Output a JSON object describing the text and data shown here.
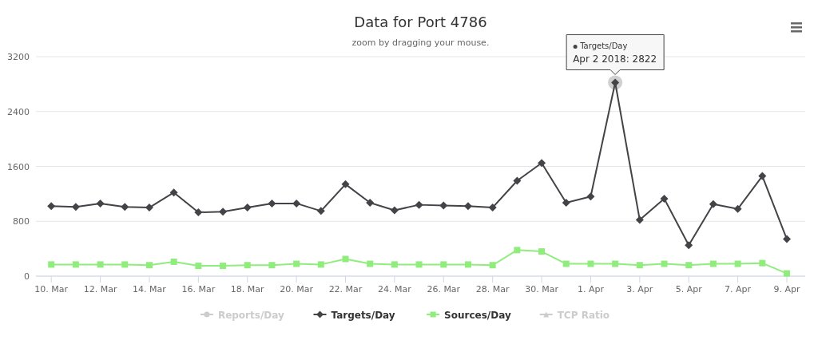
{
  "chart_data": {
    "type": "line",
    "title": "Data for Port 4786",
    "subtitle": "zoom by dragging your mouse.",
    "x": [
      "2018-03-10",
      "2018-03-11",
      "2018-03-12",
      "2018-03-13",
      "2018-03-14",
      "2018-03-15",
      "2018-03-16",
      "2018-03-17",
      "2018-03-18",
      "2018-03-19",
      "2018-03-20",
      "2018-03-21",
      "2018-03-22",
      "2018-03-23",
      "2018-03-24",
      "2018-03-25",
      "2018-03-26",
      "2018-03-27",
      "2018-03-28",
      "2018-03-29",
      "2018-03-30",
      "2018-03-31",
      "2018-04-01",
      "2018-04-02",
      "2018-04-03",
      "2018-04-04",
      "2018-04-05",
      "2018-04-06",
      "2018-04-07",
      "2018-04-08",
      "2018-04-09"
    ],
    "series": [
      {
        "name": "Reports/Day",
        "color": "#cccccc",
        "marker": "circle",
        "values": [
          null,
          null,
          null,
          null,
          null,
          null,
          null,
          null,
          null,
          null,
          null,
          null,
          null,
          null,
          null,
          null,
          null,
          null,
          null,
          null,
          null,
          null,
          null,
          null,
          null,
          null,
          null,
          null,
          null,
          null,
          null
        ]
      },
      {
        "name": "Targets/Day",
        "color": "#434348",
        "marker": "diamond",
        "values": [
          1020,
          1010,
          1060,
          1010,
          1000,
          1220,
          930,
          940,
          1000,
          1060,
          1060,
          950,
          1340,
          1070,
          960,
          1040,
          1030,
          1020,
          1000,
          1390,
          1650,
          1070,
          1160,
          2822,
          820,
          1130,
          450,
          1050,
          980,
          1460,
          540
        ]
      },
      {
        "name": "Sources/Day",
        "color": "#90ed7d",
        "marker": "square",
        "values": [
          170,
          170,
          170,
          170,
          160,
          210,
          150,
          150,
          160,
          160,
          180,
          170,
          250,
          180,
          170,
          170,
          170,
          170,
          160,
          380,
          360,
          180,
          180,
          180,
          160,
          180,
          160,
          180,
          180,
          190,
          40
        ]
      },
      {
        "name": "TCP Ratio",
        "color": "#cccccc",
        "marker": "triangle",
        "values": [
          null,
          null,
          null,
          null,
          null,
          null,
          null,
          null,
          null,
          null,
          null,
          null,
          null,
          null,
          null,
          null,
          null,
          null,
          null,
          null,
          null,
          null,
          null,
          null,
          null,
          null,
          null,
          null,
          null,
          null,
          null
        ]
      }
    ],
    "xlim": [
      "2018-03-09T09:00",
      "2018-04-09T18:00"
    ],
    "xticks": [
      {
        "value": "2018-03-10",
        "label": "10. Mar"
      },
      {
        "value": "2018-03-12",
        "label": "12. Mar"
      },
      {
        "value": "2018-03-14",
        "label": "14. Mar"
      },
      {
        "value": "2018-03-16",
        "label": "16. Mar"
      },
      {
        "value": "2018-03-18",
        "label": "18. Mar"
      },
      {
        "value": "2018-03-20",
        "label": "20. Mar"
      },
      {
        "value": "2018-03-22",
        "label": "22. Mar"
      },
      {
        "value": "2018-03-24",
        "label": "24. Mar"
      },
      {
        "value": "2018-03-26",
        "label": "26. Mar"
      },
      {
        "value": "2018-03-28",
        "label": "28. Mar"
      },
      {
        "value": "2018-03-30",
        "label": "30. Mar"
      },
      {
        "value": "2018-04-01",
        "label": "1. Apr"
      },
      {
        "value": "2018-04-03",
        "label": "3. Apr"
      },
      {
        "value": "2018-04-05",
        "label": "5. Apr"
      },
      {
        "value": "2018-04-07",
        "label": "7. Apr"
      },
      {
        "value": "2018-04-09",
        "label": "9. Apr"
      }
    ],
    "ylim": [
      0,
      3200
    ],
    "yticks": [
      0,
      800,
      1600,
      2400,
      3200
    ],
    "grid": "y",
    "legend": "bottom",
    "annotations": [
      {
        "text": "Targets/Day\nApr 2 2018: 2822",
        "x": "2018-04-02",
        "y": 2822
      }
    ]
  }
}
